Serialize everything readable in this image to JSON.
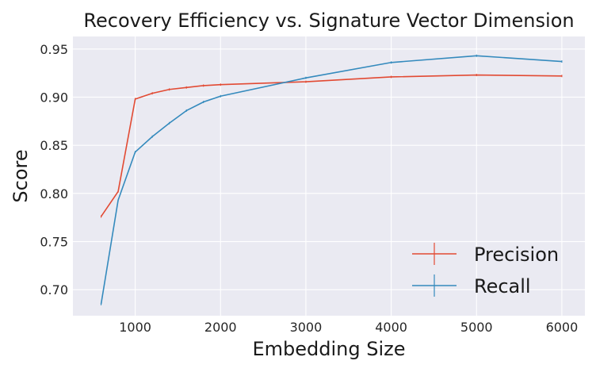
{
  "chart_data": {
    "type": "line",
    "title": "Recovery Efficiency vs. Signature Vector Dimension",
    "xlabel": "Embedding Size",
    "ylabel": "Score",
    "xlim": [
      270,
      6270
    ],
    "ylim": [
      0.673,
      0.963
    ],
    "x_ticks": [
      1000,
      2000,
      3000,
      4000,
      5000,
      6000
    ],
    "y_ticks": [
      0.7,
      0.75,
      0.8,
      0.85,
      0.9,
      0.95
    ],
    "grid": true,
    "legend_position": "lower-right",
    "series": [
      {
        "name": "Precision",
        "color": "#E24A33",
        "x": [
          600,
          800,
          1000,
          1200,
          1400,
          1600,
          1800,
          2000,
          3000,
          4000,
          5000,
          6000
        ],
        "y": [
          0.776,
          0.802,
          0.898,
          0.904,
          0.908,
          0.91,
          0.912,
          0.913,
          0.916,
          0.921,
          0.923,
          0.922
        ]
      },
      {
        "name": "Recall",
        "color": "#348ABD",
        "x": [
          600,
          800,
          1000,
          1200,
          1400,
          1600,
          1800,
          2000,
          3000,
          4000,
          5000,
          6000
        ],
        "y": [
          0.685,
          0.793,
          0.843,
          0.859,
          0.873,
          0.886,
          0.895,
          0.901,
          0.92,
          0.936,
          0.943,
          0.937
        ]
      }
    ]
  }
}
